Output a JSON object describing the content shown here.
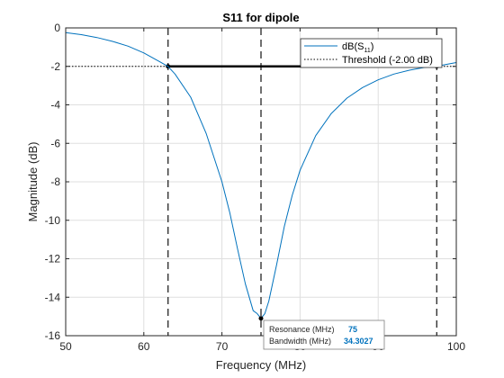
{
  "chart_data": {
    "type": "line",
    "title": "S11 for dipole",
    "xlabel": "Frequency (MHz)",
    "ylabel": "Magnitude (dB)",
    "xlim": [
      50,
      100
    ],
    "ylim": [
      -16,
      0
    ],
    "xticks": [
      50,
      60,
      70,
      80,
      90,
      100
    ],
    "yticks": [
      0,
      -2,
      -4,
      -6,
      -8,
      -10,
      -12,
      -14,
      -16
    ],
    "grid": true,
    "legend_position": "top-right",
    "legend": {
      "series_label_main": "dB(S",
      "series_label_sub": "11",
      "series_label_close": ")",
      "threshold_label": "Threshold (-2.00 dB)"
    },
    "series": [
      {
        "name": "dB(S11)",
        "color": "#0072BD",
        "x": [
          50,
          52,
          54,
          56,
          58,
          60,
          62,
          63.1,
          64,
          66,
          68,
          70,
          71,
          72,
          73,
          74,
          74.5,
          75,
          75.5,
          76,
          77,
          78,
          79,
          80,
          82,
          84,
          86,
          88,
          90,
          92,
          94,
          96,
          97.5,
          98,
          100
        ],
        "values": [
          -0.25,
          -0.35,
          -0.5,
          -0.7,
          -0.95,
          -1.3,
          -1.75,
          -2.0,
          -2.4,
          -3.6,
          -5.5,
          -8.0,
          -9.6,
          -11.5,
          -13.3,
          -14.7,
          -14.85,
          -15.1,
          -14.85,
          -14.2,
          -12.3,
          -10.3,
          -8.7,
          -7.4,
          -5.6,
          -4.45,
          -3.65,
          -3.1,
          -2.7,
          -2.4,
          -2.2,
          -2.05,
          -2.0,
          -1.95,
          -1.8
        ]
      }
    ],
    "threshold": {
      "value": -2.0,
      "color": "#000000"
    },
    "markers": {
      "vertical_lines": [
        63.1,
        75,
        97.5
      ],
      "bandwidth_span": [
        63.1,
        97.5
      ],
      "resonance_point": {
        "x": 75,
        "y": -15.1
      }
    },
    "annotation": {
      "resonance_label": "Resonance  (MHz)",
      "resonance_value": "75",
      "bandwidth_label": "Bandwidth  (MHz)",
      "bandwidth_value": "34.3027"
    },
    "colors": {
      "axis": "#262626",
      "grid": "#dfdfdf",
      "value_text": "#0072BD"
    }
  }
}
